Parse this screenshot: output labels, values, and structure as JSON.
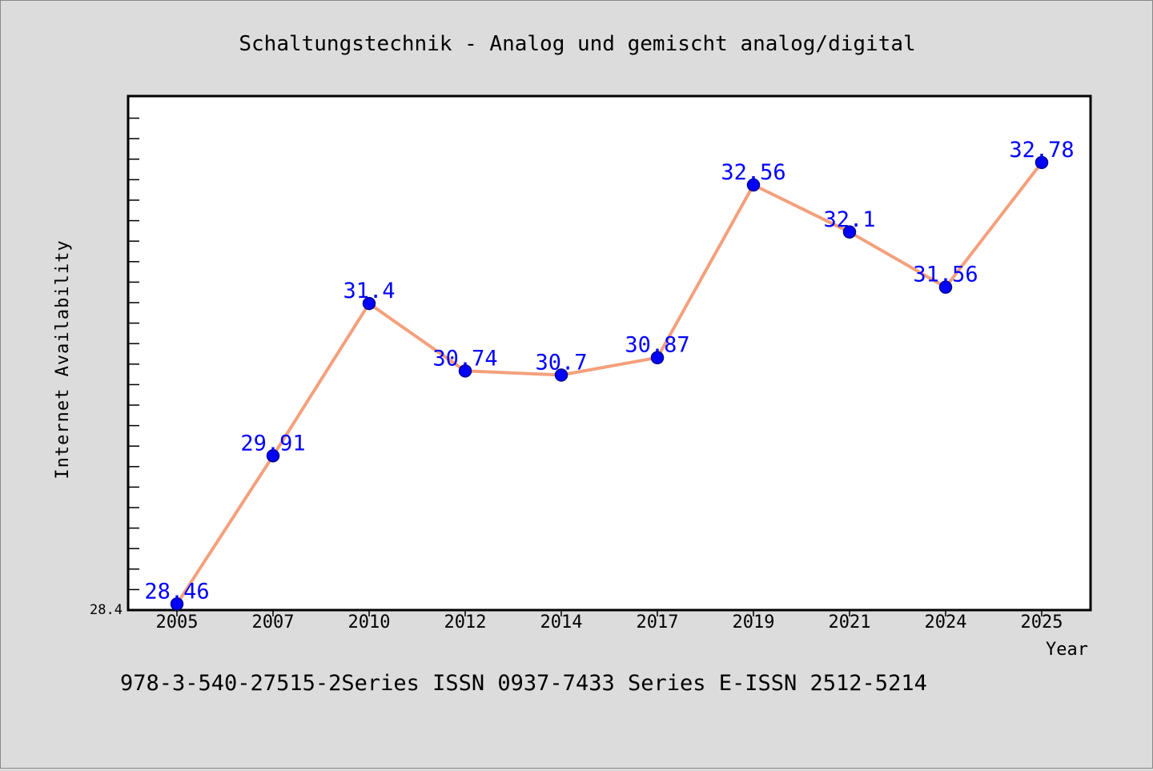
{
  "chart_data": {
    "type": "line",
    "title": "Schaltungstechnik - Analog und gemischt analog/digital",
    "footer": "978-3-540-27515-2Series ISSN 0937-7433 Series E-ISSN 2512-5214",
    "xlabel": "Year",
    "ylabel": "Internet Availability",
    "categories": [
      "2005",
      "2007",
      "2010",
      "2012",
      "2014",
      "2017",
      "2019",
      "2021",
      "2024",
      "2025"
    ],
    "values": [
      28.46,
      29.91,
      31.4,
      30.74,
      30.7,
      30.87,
      32.56,
      32.1,
      31.56,
      32.78
    ],
    "data_labels": [
      "28.46",
      "29.91",
      "31.4",
      "30.74",
      "30.7",
      "30.87",
      "32.56",
      "32.1",
      "31.56",
      "32.78"
    ],
    "y_tick_labels": [
      "28.4"
    ],
    "ylim": [
      28.4,
      33.43
    ],
    "grid": false,
    "colors": {
      "line": "#f4a07c",
      "marker": "#0000ff",
      "marker_edge": "#00008b",
      "label": "#0000ff",
      "background": "#dcdcdc",
      "plot_background": "#ffffff"
    }
  }
}
